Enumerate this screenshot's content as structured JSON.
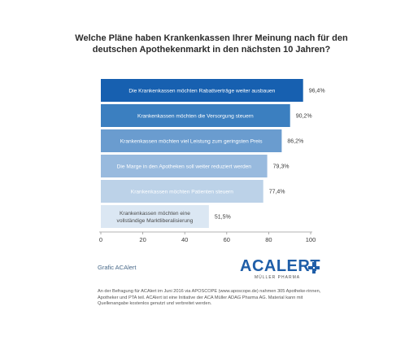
{
  "title_lines": [
    "Welche Pläne haben Krankenkassen Ihrer Meinung nach für den",
    "deutschen Apothekenmarkt in den nächsten 10 Jahren?"
  ],
  "chart_data": {
    "type": "bar",
    "orientation": "horizontal",
    "categories": [
      "Die Krankenkassen möchten Rabattverträge weiter ausbauen",
      "Krankenkassen möchten die Versorgung steuern",
      "Krankenkassen möchten viel Leistung zum geringsten Preis",
      "Die Marge in den Apotheken soll weiter reduziert werden",
      "Krankenkassen möchten Patienten steuern",
      "Krankenkassen möchten eine vollständige Marktliberalisierung"
    ],
    "category_lines": [
      [
        "Die Krankenkassen möchten Rabattverträge weiter ausbauen"
      ],
      [
        "Krankenkassen möchten die Versorgung steuern"
      ],
      [
        "Krankenkassen möchten viel Leistung zum geringsten Preis"
      ],
      [
        "Die Marge in den Apotheken soll weiter reduziert werden"
      ],
      [
        "Krankenkassen möchten Patienten steuern"
      ],
      [
        "Krankenkassen möchten eine",
        "vollständige Marktliberalisierung"
      ]
    ],
    "values": [
      96.4,
      90.2,
      86.2,
      79.3,
      77.4,
      51.5
    ],
    "value_labels": [
      "96,4%",
      "90,2%",
      "86,2%",
      "79,3%",
      "77,4%",
      "51,5%"
    ],
    "bar_colors": [
      "#1760b0",
      "#3b7fc0",
      "#6a9ccf",
      "#98bade",
      "#bcd2e8",
      "#dbe7f3"
    ],
    "label_colors": [
      "#ffffff",
      "#ffffff",
      "#ffffff",
      "#ffffff",
      "#ffffff",
      "#4a4a4a"
    ],
    "xlim": [
      0,
      100
    ],
    "xticks": [
      0,
      20,
      40,
      60,
      80,
      100
    ],
    "xlabel": "",
    "ylabel": "",
    "grid": false,
    "legend": false
  },
  "source": "Grafic ACAlert",
  "logo": {
    "text": "ACALERT",
    "subtext": "MÜLLER PHARMA",
    "brand_color": "#1f5ea8",
    "cross_icon": "medical-cross-icon"
  },
  "footnote": "An der Befragung für ACAlert im Juni 2016 via APOSCOPE (www.aposcope.de) nahmen 305 Apotheke-rinnen, Apotheker und PTA teil. ACAlert ist eine Initiative der ACA Müller ADAG Pharma AG. Material kann mit Quellenangabe kostenlos genutzt und verbreitet werden."
}
